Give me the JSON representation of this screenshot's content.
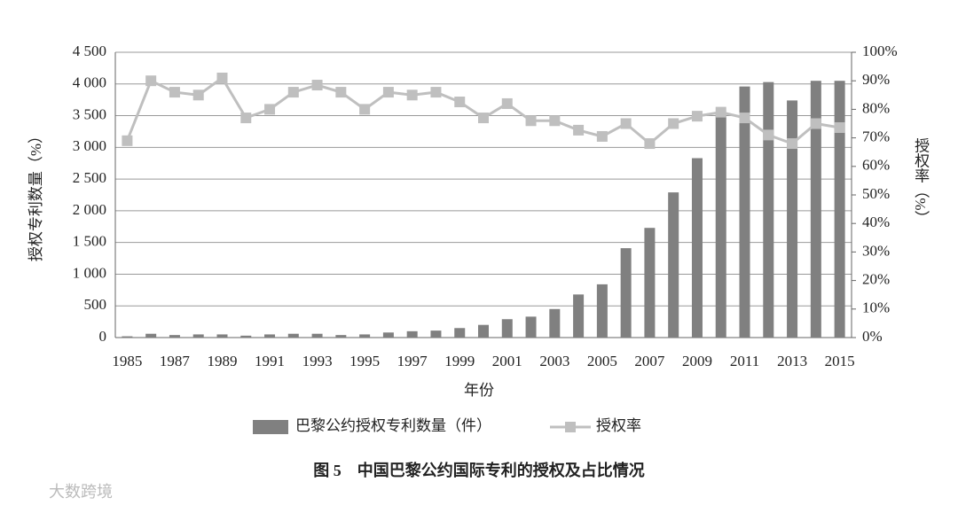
{
  "chart_data": {
    "type": "bar",
    "y_label": "授权专利数量（%）",
    "y2_label": "授权率（%）",
    "x_label": "年份",
    "caption": "图 5　中国巴黎公约国际专利的授权及占比情况",
    "watermark": "大数跨境",
    "categories": [
      "1985",
      null,
      "1987",
      null,
      "1989",
      null,
      "1991",
      null,
      "1993",
      null,
      "1995",
      null,
      "1997",
      null,
      "1999",
      null,
      "2001",
      null,
      "2003",
      null,
      "2005",
      null,
      "2007",
      null,
      "2009",
      null,
      "2011",
      null,
      "2013",
      null,
      "2015"
    ],
    "series": [
      {
        "name": "巴黎公约授权专利数量（件）",
        "type": "bar",
        "color": "#808080",
        "values": [
          20,
          60,
          40,
          50,
          50,
          30,
          50,
          60,
          60,
          40,
          50,
          80,
          100,
          110,
          150,
          200,
          290,
          330,
          450,
          680,
          840,
          1410,
          1730,
          2290,
          2830,
          3530,
          3960,
          4030,
          3740,
          4050,
          4050
        ]
      },
      {
        "name": "授权率",
        "type": "line",
        "axis": "y2",
        "color": "#bfbfbf",
        "values": [
          69,
          90,
          86,
          85,
          91,
          77,
          80,
          86,
          88.5,
          86,
          80,
          86,
          85,
          86,
          82.6,
          77,
          82,
          76,
          76,
          72.7,
          70.5,
          75,
          68,
          75,
          77.6,
          79,
          77,
          71,
          68,
          75,
          73.6
        ]
      }
    ],
    "ylim": [
      0,
      4500
    ],
    "yticks": [
      0,
      500,
      {
        "value": 1000,
        "label": "1 000"
      },
      {
        "value": 1500,
        "label": "1 500"
      },
      {
        "value": 2000,
        "label": "2 000"
      },
      {
        "value": 2500,
        "label": "2 500"
      },
      {
        "value": 3000,
        "label": "3 000"
      },
      {
        "value": 3500,
        "label": "3 500"
      },
      {
        "value": 4000,
        "label": "4 000"
      },
      {
        "value": 4500,
        "label": "4 500"
      }
    ],
    "y2lim": [
      0,
      100
    ],
    "y2ticks": [
      {
        "value": 0,
        "label": "0%"
      },
      {
        "value": 10,
        "label": "10%"
      },
      {
        "value": 20,
        "label": "20%"
      },
      {
        "value": 30,
        "label": "30%"
      },
      {
        "value": 40,
        "label": "40%"
      },
      {
        "value": 50,
        "label": "50%"
      },
      {
        "value": 60,
        "label": "60%"
      },
      {
        "value": 70,
        "label": "70%"
      },
      {
        "value": 80,
        "label": "80%"
      },
      {
        "value": 90,
        "label": "90%"
      },
      {
        "value": 100,
        "label": "100%"
      }
    ],
    "grid": true,
    "legend": "bottom"
  }
}
